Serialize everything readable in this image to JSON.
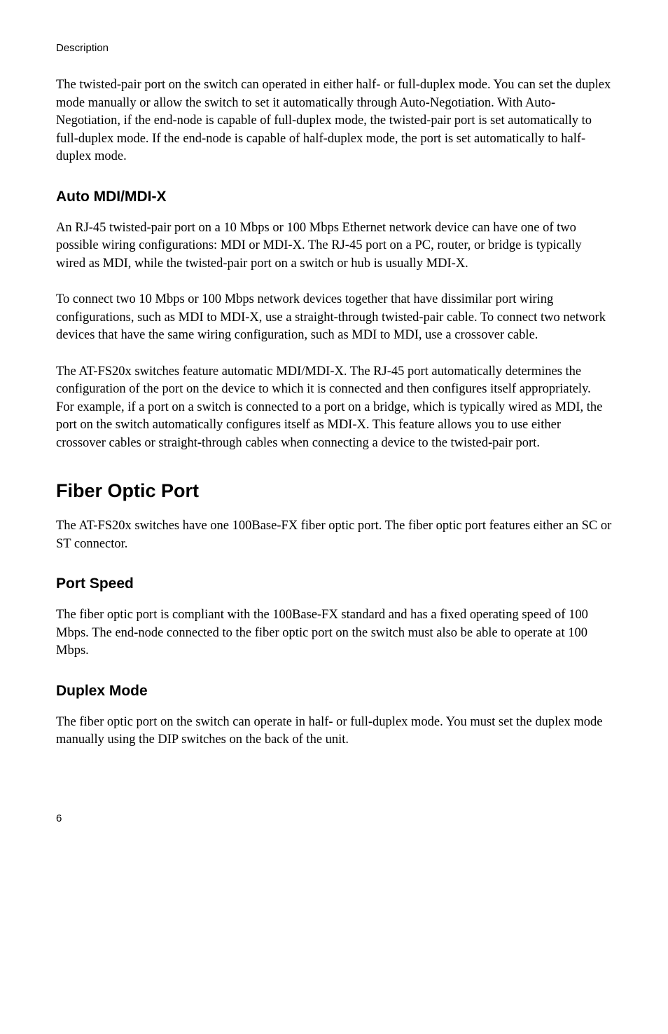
{
  "header": "Description",
  "para1": "The twisted-pair port on the switch can operated in either half- or full-duplex mode. You can set the duplex mode manually or allow the switch to set it automatically through Auto-Negotiation. With Auto-Negotiation, if the end-node is capable of full-duplex mode, the twisted-pair port is set automatically to full-duplex mode. If the end-node is capable of half-duplex mode, the port is set automatically to half-duplex mode.",
  "heading_auto_mdi": "Auto MDI/MDI-X",
  "para2": "An RJ-45 twisted-pair port on a 10 Mbps or 100 Mbps Ethernet network device can have one of two possible wiring configurations: MDI or MDI-X. The RJ-45 port on a PC, router, or bridge is typically wired as MDI, while the twisted-pair port on a switch or hub is usually MDI-X.",
  "para3": "To connect two 10 Mbps or 100 Mbps network devices together that have dissimilar port wiring configurations, such as MDI to MDI-X, use a straight-through twisted-pair cable. To connect two network devices that have the same wiring configuration, such as MDI to MDI, use a crossover cable.",
  "para4": "The AT-FS20x switches feature automatic MDI/MDI-X. The RJ-45 port automatically determines the configuration of the port on the device to which it is connected and then configures itself appropriately. For example, if a port on a switch is connected to a port on a bridge, which is typically wired as MDI, the port on the switch automatically configures itself as MDI-X. This feature allows you to use either crossover cables or straight-through cables when connecting a device to the twisted-pair port.",
  "heading_fiber": "Fiber Optic Port",
  "para5": "The AT-FS20x switches have one 100Base-FX fiber optic port. The fiber optic port features either an SC or ST connector.",
  "heading_port_speed": "Port Speed",
  "para6": "The fiber optic port is compliant with the 100Base-FX standard and has a fixed operating speed of 100 Mbps. The end-node connected to the fiber optic port on the switch must also be able to operate at 100 Mbps.",
  "heading_duplex": "Duplex Mode",
  "para7": "The fiber optic port on the switch can operate in half- or full-duplex mode. You must set the duplex mode manually using the DIP switches on the back of the unit.",
  "page_number": "6"
}
